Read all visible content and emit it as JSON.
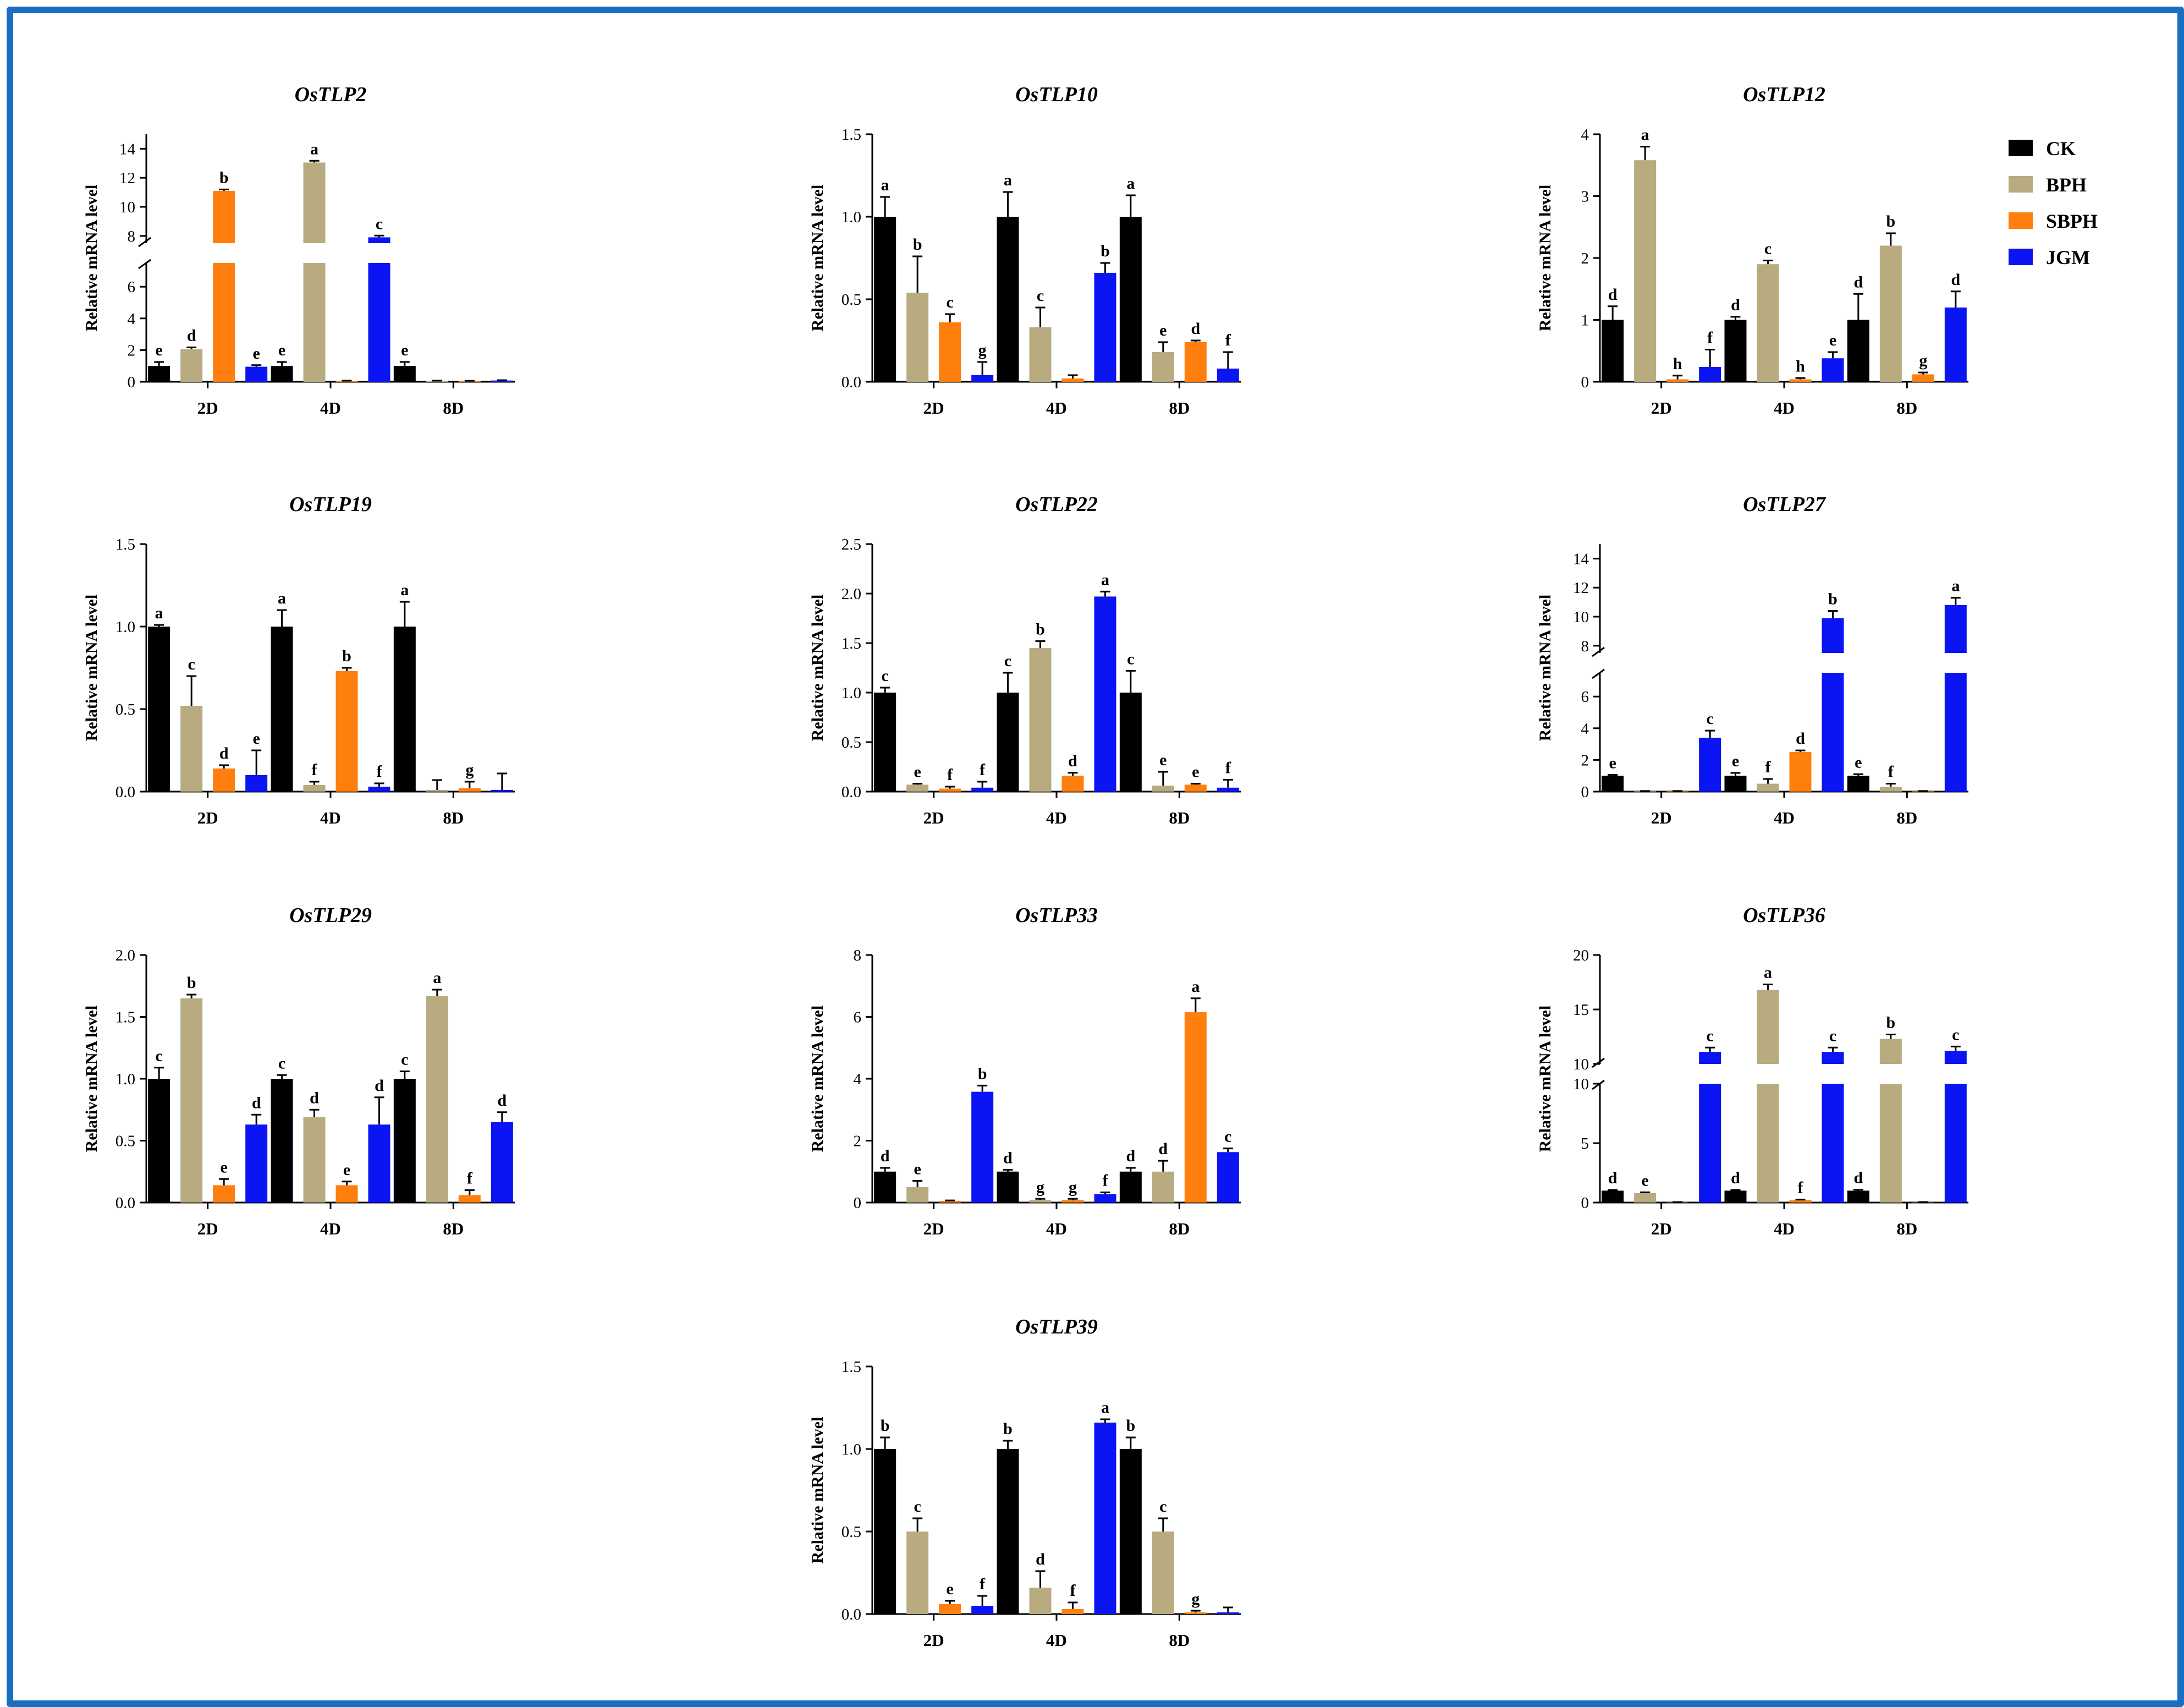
{
  "ylabel": "Relative mRNA level",
  "groups": [
    "2D",
    "4D",
    "8D"
  ],
  "legend": [
    {
      "name": "CK",
      "color": "#000000"
    },
    {
      "name": "BPH",
      "color": "#b8ab80"
    },
    {
      "name": "SBPH",
      "color": "#ff7f0e"
    },
    {
      "name": "JGM",
      "color": "#0b14f2"
    }
  ],
  "chart_data": [
    {
      "type": "bar",
      "title": "OsTLP2",
      "xlabel": "",
      "ylabel": "Relative mRNA level",
      "categories": [
        "2D",
        "4D",
        "8D"
      ],
      "axis_break": {
        "lower": [
          0,
          7.5
        ],
        "upper": [
          7.5,
          15
        ],
        "lower_ticks": [
          0,
          2,
          4,
          6
        ],
        "upper_ticks": [
          8,
          10,
          12,
          14
        ]
      },
      "series": [
        {
          "name": "CK",
          "values": [
            1.0,
            1.0,
            1.0
          ],
          "errors": [
            0.25,
            0.25,
            0.25
          ],
          "labels": [
            "e",
            "e",
            "e"
          ]
        },
        {
          "name": "BPH",
          "values": [
            2.05,
            13.05,
            0.05
          ],
          "errors": [
            0.12,
            0.12,
            0.02
          ],
          "labels": [
            "d",
            "a",
            ""
          ]
        },
        {
          "name": "SBPH",
          "values": [
            11.1,
            0.05,
            0.04
          ],
          "errors": [
            0.1,
            0.02,
            0.02
          ],
          "labels": [
            "b",
            "",
            ""
          ]
        },
        {
          "name": "JGM",
          "values": [
            0.95,
            7.9,
            0.08
          ],
          "errors": [
            0.1,
            0.12,
            0.02
          ],
          "labels": [
            "e",
            "c",
            ""
          ]
        }
      ]
    },
    {
      "type": "bar",
      "title": "OsTLP10",
      "xlabel": "",
      "ylabel": "Relative mRNA level",
      "categories": [
        "2D",
        "4D",
        "8D"
      ],
      "ylim": [
        0,
        1.5
      ],
      "yticks": [
        "0.0",
        "0.5",
        "1.0",
        "1.5"
      ],
      "series": [
        {
          "name": "CK",
          "values": [
            1.0,
            1.0,
            1.0
          ],
          "errors": [
            0.12,
            0.15,
            0.13
          ],
          "labels": [
            "a",
            "a",
            "a"
          ]
        },
        {
          "name": "BPH",
          "values": [
            0.54,
            0.33,
            0.18
          ],
          "errors": [
            0.22,
            0.12,
            0.06
          ],
          "labels": [
            "b",
            "c",
            "e"
          ]
        },
        {
          "name": "SBPH",
          "values": [
            0.36,
            0.02,
            0.24
          ],
          "errors": [
            0.05,
            0.02,
            0.01
          ],
          "labels": [
            "c",
            "",
            "d"
          ]
        },
        {
          "name": "JGM",
          "values": [
            0.04,
            0.66,
            0.08
          ],
          "errors": [
            0.08,
            0.06,
            0.1
          ],
          "labels": [
            "g",
            "b",
            "f"
          ]
        }
      ]
    },
    {
      "type": "bar",
      "title": "OsTLP12",
      "xlabel": "",
      "ylabel": "Relative mRNA level",
      "categories": [
        "2D",
        "4D",
        "8D"
      ],
      "ylim": [
        0,
        4
      ],
      "yticks": [
        "0",
        "1",
        "2",
        "3",
        "4"
      ],
      "series": [
        {
          "name": "CK",
          "values": [
            1.0,
            1.0,
            1.0
          ],
          "errors": [
            0.22,
            0.05,
            0.42
          ],
          "labels": [
            "d",
            "d",
            "d"
          ]
        },
        {
          "name": "BPH",
          "values": [
            3.58,
            1.9,
            2.2
          ],
          "errors": [
            0.22,
            0.06,
            0.2
          ],
          "labels": [
            "a",
            "c",
            "b"
          ]
        },
        {
          "name": "SBPH",
          "values": [
            0.04,
            0.04,
            0.12
          ],
          "errors": [
            0.06,
            0.02,
            0.03
          ],
          "labels": [
            "h",
            "h",
            "g"
          ]
        },
        {
          "name": "JGM",
          "values": [
            0.24,
            0.38,
            1.2
          ],
          "errors": [
            0.28,
            0.1,
            0.26
          ],
          "labels": [
            "f",
            "e",
            "d"
          ]
        }
      ]
    },
    {
      "type": "bar",
      "title": "OsTLP19",
      "xlabel": "",
      "ylabel": "Relative mRNA level",
      "categories": [
        "2D",
        "4D",
        "8D"
      ],
      "ylim": [
        0,
        1.5
      ],
      "yticks": [
        "0.0",
        "0.5",
        "1.0",
        "1.5"
      ],
      "series": [
        {
          "name": "CK",
          "values": [
            1.0,
            1.0,
            1.0
          ],
          "errors": [
            0.01,
            0.1,
            0.15
          ],
          "labels": [
            "a",
            "a",
            "a"
          ]
        },
        {
          "name": "BPH",
          "values": [
            0.52,
            0.04,
            0.01
          ],
          "errors": [
            0.18,
            0.02,
            0.06
          ],
          "labels": [
            "c",
            "f",
            ""
          ]
        },
        {
          "name": "SBPH",
          "values": [
            0.14,
            0.73,
            0.02
          ],
          "errors": [
            0.02,
            0.02,
            0.04
          ],
          "labels": [
            "d",
            "b",
            "g"
          ]
        },
        {
          "name": "JGM",
          "values": [
            0.1,
            0.03,
            0.01
          ],
          "errors": [
            0.15,
            0.02,
            0.1
          ],
          "labels": [
            "e",
            "f",
            ""
          ]
        }
      ]
    },
    {
      "type": "bar",
      "title": "OsTLP22",
      "xlabel": "",
      "ylabel": "Relative mRNA level",
      "categories": [
        "2D",
        "4D",
        "8D"
      ],
      "ylim": [
        0,
        2.5
      ],
      "yticks": [
        "0.0",
        "0.5",
        "1.0",
        "1.5",
        "2.0",
        "2.5"
      ],
      "series": [
        {
          "name": "CK",
          "values": [
            1.0,
            1.0,
            1.0
          ],
          "errors": [
            0.05,
            0.2,
            0.22
          ],
          "labels": [
            "c",
            "c",
            "c"
          ]
        },
        {
          "name": "BPH",
          "values": [
            0.07,
            1.45,
            0.06
          ],
          "errors": [
            0.01,
            0.07,
            0.14
          ],
          "labels": [
            "e",
            "b",
            "e"
          ]
        },
        {
          "name": "SBPH",
          "values": [
            0.03,
            0.16,
            0.07
          ],
          "errors": [
            0.02,
            0.03,
            0.01
          ],
          "labels": [
            "f",
            "d",
            "e"
          ]
        },
        {
          "name": "JGM",
          "values": [
            0.04,
            1.97,
            0.04
          ],
          "errors": [
            0.06,
            0.05,
            0.08
          ],
          "labels": [
            "f",
            "a",
            "f"
          ]
        }
      ]
    },
    {
      "type": "bar",
      "title": "OsTLP27",
      "xlabel": "",
      "ylabel": "Relative mRNA level",
      "categories": [
        "2D",
        "4D",
        "8D"
      ],
      "axis_break": {
        "lower": [
          0,
          7.5
        ],
        "upper": [
          7.5,
          15
        ],
        "lower_ticks": [
          0,
          2,
          4,
          6
        ],
        "upper_ticks": [
          8,
          10,
          12,
          14
        ]
      },
      "series": [
        {
          "name": "CK",
          "values": [
            1.0,
            1.0,
            1.0
          ],
          "errors": [
            0.06,
            0.18,
            0.1
          ],
          "labels": [
            "e",
            "e",
            "e"
          ]
        },
        {
          "name": "BPH",
          "values": [
            0.03,
            0.5,
            0.3
          ],
          "errors": [
            0.01,
            0.3,
            0.2
          ],
          "labels": [
            "",
            "f",
            "f"
          ]
        },
        {
          "name": "SBPH",
          "values": [
            0.03,
            2.5,
            0.03
          ],
          "errors": [
            0.01,
            0.1,
            0.01
          ],
          "labels": [
            "",
            "d",
            ""
          ]
        },
        {
          "name": "JGM",
          "values": [
            3.4,
            9.9,
            10.8
          ],
          "errors": [
            0.45,
            0.5,
            0.5
          ],
          "labels": [
            "c",
            "b",
            "a"
          ]
        }
      ]
    },
    {
      "type": "bar",
      "title": "OsTLP29",
      "xlabel": "",
      "ylabel": "Relative mRNA level",
      "categories": [
        "2D",
        "4D",
        "8D"
      ],
      "ylim": [
        0,
        2.0
      ],
      "yticks": [
        "0.0",
        "0.5",
        "1.0",
        "1.5",
        "2.0"
      ],
      "series": [
        {
          "name": "CK",
          "values": [
            1.0,
            1.0,
            1.0
          ],
          "errors": [
            0.09,
            0.03,
            0.06
          ],
          "labels": [
            "c",
            "c",
            "c"
          ]
        },
        {
          "name": "BPH",
          "values": [
            1.65,
            0.69,
            1.67
          ],
          "errors": [
            0.03,
            0.06,
            0.05
          ],
          "labels": [
            "b",
            "d",
            "a"
          ]
        },
        {
          "name": "SBPH",
          "values": [
            0.14,
            0.14,
            0.06
          ],
          "errors": [
            0.05,
            0.03,
            0.04
          ],
          "labels": [
            "e",
            "e",
            "f"
          ]
        },
        {
          "name": "JGM",
          "values": [
            0.63,
            0.63,
            0.65
          ],
          "errors": [
            0.08,
            0.22,
            0.08
          ],
          "labels": [
            "d",
            "d",
            "d"
          ]
        }
      ]
    },
    {
      "type": "bar",
      "title": "OsTLP33",
      "xlabel": "",
      "ylabel": "Relative mRNA level",
      "categories": [
        "2D",
        "4D",
        "8D"
      ],
      "ylim": [
        0,
        8
      ],
      "yticks": [
        "0",
        "2",
        "4",
        "6",
        "8"
      ],
      "series": [
        {
          "name": "CK",
          "values": [
            1.0,
            1.0,
            1.0
          ],
          "errors": [
            0.12,
            0.06,
            0.12
          ],
          "labels": [
            "d",
            "d",
            "d"
          ]
        },
        {
          "name": "BPH",
          "values": [
            0.5,
            0.08,
            1.0
          ],
          "errors": [
            0.2,
            0.04,
            0.35
          ],
          "labels": [
            "e",
            "g",
            "d"
          ]
        },
        {
          "name": "SBPH",
          "values": [
            0.05,
            0.08,
            6.15
          ],
          "errors": [
            0.02,
            0.04,
            0.45
          ],
          "labels": [
            "",
            "g",
            "a"
          ]
        },
        {
          "name": "JGM",
          "values": [
            3.58,
            0.27,
            1.63
          ],
          "errors": [
            0.2,
            0.06,
            0.12
          ],
          "labels": [
            "b",
            "f",
            "c"
          ]
        }
      ]
    },
    {
      "type": "bar",
      "title": "OsTLP36",
      "xlabel": "",
      "ylabel": "Relative mRNA level",
      "categories": [
        "2D",
        "4D",
        "8D"
      ],
      "axis_break": {
        "lower": [
          0,
          10
        ],
        "upper": [
          10,
          20
        ],
        "lower_ticks": [
          0,
          5,
          10
        ],
        "upper_ticks": [
          10,
          15,
          20
        ]
      },
      "series": [
        {
          "name": "CK",
          "values": [
            1.0,
            1.0,
            1.0
          ],
          "errors": [
            0.06,
            0.06,
            0.08
          ],
          "labels": [
            "d",
            "d",
            "d"
          ]
        },
        {
          "name": "BPH",
          "values": [
            0.8,
            16.8,
            12.3
          ],
          "errors": [
            0.06,
            0.5,
            0.4
          ],
          "labels": [
            "e",
            "a",
            "b"
          ]
        },
        {
          "name": "SBPH",
          "values": [
            0.03,
            0.2,
            0.03
          ],
          "errors": [
            0.01,
            0.05,
            0.01
          ],
          "labels": [
            "",
            "f",
            ""
          ]
        },
        {
          "name": "JGM",
          "values": [
            11.1,
            11.1,
            11.2
          ],
          "errors": [
            0.4,
            0.4,
            0.4
          ],
          "labels": [
            "c",
            "c",
            "c"
          ]
        }
      ]
    },
    {
      "type": "bar",
      "title": "OsTLP39",
      "xlabel": "",
      "ylabel": "Relative mRNA level",
      "categories": [
        "2D",
        "4D",
        "8D"
      ],
      "ylim": [
        0,
        1.5
      ],
      "yticks": [
        "0.0",
        "0.5",
        "1.0",
        "1.5"
      ],
      "series": [
        {
          "name": "CK",
          "values": [
            1.0,
            1.0,
            1.0
          ],
          "errors": [
            0.07,
            0.05,
            0.07
          ],
          "labels": [
            "b",
            "b",
            "b"
          ]
        },
        {
          "name": "BPH",
          "values": [
            0.5,
            0.16,
            0.5
          ],
          "errors": [
            0.08,
            0.1,
            0.08
          ],
          "labels": [
            "c",
            "d",
            "c"
          ]
        },
        {
          "name": "SBPH",
          "values": [
            0.06,
            0.03,
            0.01
          ],
          "errors": [
            0.02,
            0.04,
            0.01
          ],
          "labels": [
            "e",
            "f",
            "g"
          ]
        },
        {
          "name": "JGM",
          "values": [
            0.05,
            1.16,
            0.01
          ],
          "errors": [
            0.06,
            0.02,
            0.03
          ],
          "labels": [
            "f",
            "a",
            ""
          ]
        }
      ]
    }
  ]
}
